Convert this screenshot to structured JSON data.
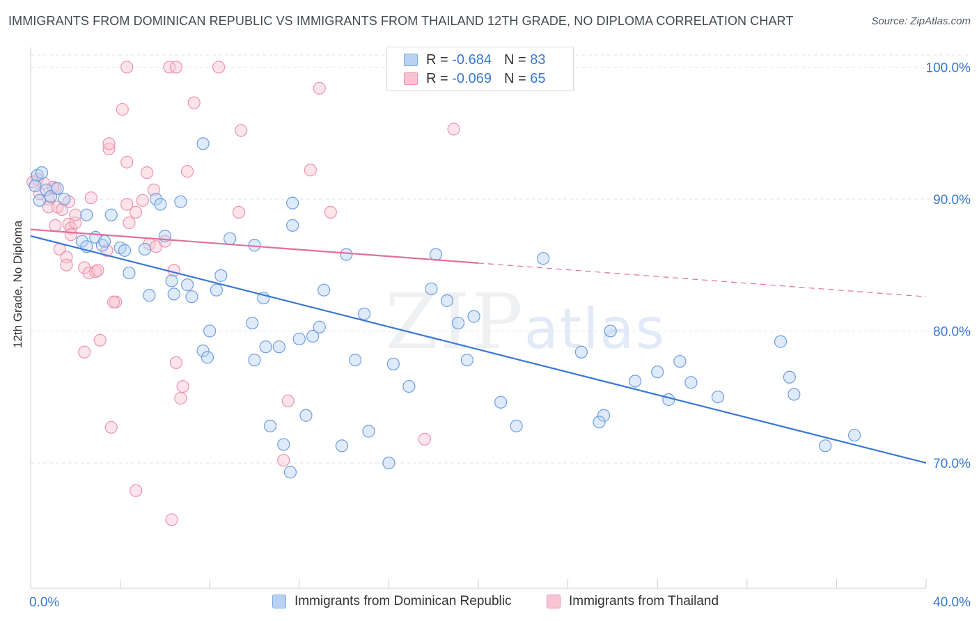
{
  "title": "IMMIGRANTS FROM DOMINICAN REPUBLIC VS IMMIGRANTS FROM THAILAND 12TH GRADE, NO DIPLOMA CORRELATION CHART",
  "source": "Source: ZipAtlas.com",
  "watermark": {
    "zip": "ZIP",
    "atlas": "atlas"
  },
  "stats": {
    "blue": {
      "r_label": "R =",
      "r": "-0.684",
      "n_label": "N =",
      "n": "83"
    },
    "pink": {
      "r_label": "R =",
      "r": "-0.069",
      "n_label": "N =",
      "n": "65"
    }
  },
  "legend": {
    "blue": "Immigrants from Dominican Republic",
    "pink": "Immigrants from Thailand"
  },
  "colors": {
    "blue": "#3a78d4",
    "blue_fill": "#b9d2f3",
    "pink": "#e0709a",
    "pink_fill": "#f8c4d3",
    "tick_label": "#3a78d4"
  },
  "chart_data": {
    "type": "scatter",
    "ylabel": "12th Grade, No Diploma",
    "xlim": [
      0,
      40
    ],
    "ylim": [
      60.5,
      101.5
    ],
    "x_tick_labels": [
      {
        "value": 0,
        "label": "0.0%"
      },
      {
        "value": 40,
        "label": "40.0%"
      }
    ],
    "y_ticks": [
      {
        "value": 70,
        "label": "70.0%"
      },
      {
        "value": 80,
        "label": "80.0%"
      },
      {
        "value": 90,
        "label": "90.0%"
      },
      {
        "value": 100,
        "label": "100.0%"
      }
    ],
    "grid": true,
    "legend_position": "bottom",
    "series": [
      {
        "name": "Immigrants from Dominican Republic",
        "color": "#3a78d4",
        "trend": {
          "x": [
            0,
            40
          ],
          "y": [
            87.2,
            70.0
          ],
          "dashed_from": null
        },
        "points": [
          [
            0.3,
            91.8
          ],
          [
            0.7,
            90.7
          ],
          [
            0.9,
            90.2
          ],
          [
            1.5,
            90.0
          ],
          [
            0.4,
            89.9
          ],
          [
            2.5,
            88.8
          ],
          [
            3.6,
            88.8
          ],
          [
            5.6,
            90.0
          ],
          [
            5.8,
            89.6
          ],
          [
            6.7,
            89.8
          ],
          [
            7.7,
            94.2
          ],
          [
            2.3,
            86.8
          ],
          [
            2.9,
            87.1
          ],
          [
            2.5,
            86.4
          ],
          [
            3.2,
            86.5
          ],
          [
            3.3,
            86.8
          ],
          [
            4.0,
            86.3
          ],
          [
            4.2,
            86.1
          ],
          [
            5.1,
            86.2
          ],
          [
            6.0,
            87.2
          ],
          [
            4.4,
            84.4
          ],
          [
            6.3,
            83.8
          ],
          [
            7.0,
            83.5
          ],
          [
            5.3,
            82.7
          ],
          [
            6.4,
            82.8
          ],
          [
            7.2,
            82.6
          ],
          [
            8.5,
            84.2
          ],
          [
            8.9,
            87.0
          ],
          [
            10.0,
            86.5
          ],
          [
            11.7,
            88.0
          ],
          [
            11.7,
            89.7
          ],
          [
            14.1,
            85.8
          ],
          [
            8.3,
            83.1
          ],
          [
            10.4,
            82.5
          ],
          [
            13.1,
            83.1
          ],
          [
            11.1,
            78.8
          ],
          [
            9.9,
            80.6
          ],
          [
            8.0,
            80.0
          ],
          [
            7.7,
            78.5
          ],
          [
            7.9,
            78.0
          ],
          [
            10.0,
            77.8
          ],
          [
            10.5,
            78.8
          ],
          [
            12.0,
            79.4
          ],
          [
            12.6,
            79.6
          ],
          [
            12.9,
            80.3
          ],
          [
            14.9,
            81.3
          ],
          [
            18.1,
            85.8
          ],
          [
            17.9,
            83.2
          ],
          [
            18.6,
            82.3
          ],
          [
            14.5,
            77.8
          ],
          [
            19.1,
            80.6
          ],
          [
            19.8,
            81.1
          ],
          [
            19.5,
            77.8
          ],
          [
            16.2,
            77.5
          ],
          [
            16.9,
            75.8
          ],
          [
            12.3,
            73.6
          ],
          [
            10.7,
            72.8
          ],
          [
            11.3,
            71.4
          ],
          [
            11.6,
            69.3
          ],
          [
            13.9,
            71.3
          ],
          [
            15.1,
            72.4
          ],
          [
            16.0,
            70.0
          ],
          [
            21.0,
            74.6
          ],
          [
            21.7,
            72.8
          ],
          [
            22.9,
            85.5
          ],
          [
            24.6,
            78.4
          ],
          [
            25.9,
            80.0
          ],
          [
            25.6,
            73.6
          ],
          [
            25.4,
            73.1
          ],
          [
            27.0,
            76.2
          ],
          [
            28.0,
            76.9
          ],
          [
            28.5,
            74.8
          ],
          [
            29.0,
            77.7
          ],
          [
            29.5,
            76.1
          ],
          [
            30.7,
            75.0
          ],
          [
            33.5,
            79.2
          ],
          [
            33.9,
            76.5
          ],
          [
            34.1,
            75.2
          ],
          [
            35.5,
            71.3
          ],
          [
            36.8,
            72.1
          ],
          [
            0.5,
            92.0
          ],
          [
            0.2,
            91.0
          ],
          [
            1.2,
            90.8
          ]
        ]
      },
      {
        "name": "Immigrants from Thailand",
        "color": "#e0709a",
        "trend": {
          "x": [
            0,
            40
          ],
          "y": [
            87.7,
            82.6
          ],
          "dashed_from": 20
        },
        "points": [
          [
            0.3,
            91.5
          ],
          [
            0.6,
            91.2
          ],
          [
            0.4,
            90.4
          ],
          [
            0.8,
            90.0
          ],
          [
            1.1,
            90.8
          ],
          [
            0.8,
            89.4
          ],
          [
            1.2,
            89.4
          ],
          [
            1.4,
            89.2
          ],
          [
            1.7,
            89.8
          ],
          [
            1.1,
            88.0
          ],
          [
            1.7,
            88.1
          ],
          [
            1.8,
            87.8
          ],
          [
            2.0,
            88.2
          ],
          [
            2.0,
            88.8
          ],
          [
            1.8,
            87.3
          ],
          [
            2.7,
            90.1
          ],
          [
            3.5,
            93.8
          ],
          [
            3.5,
            94.2
          ],
          [
            4.1,
            96.8
          ],
          [
            4.3,
            92.8
          ],
          [
            4.3,
            89.6
          ],
          [
            4.4,
            88.2
          ],
          [
            4.7,
            89.0
          ],
          [
            5.2,
            92.0
          ],
          [
            5.0,
            89.9
          ],
          [
            5.5,
            90.7
          ],
          [
            5.3,
            86.6
          ],
          [
            5.6,
            86.4
          ],
          [
            6.0,
            86.8
          ],
          [
            6.4,
            84.6
          ],
          [
            4.3,
            100.0
          ],
          [
            6.2,
            100.0
          ],
          [
            6.5,
            100.0
          ],
          [
            8.4,
            100.0
          ],
          [
            7.3,
            97.3
          ],
          [
            9.4,
            95.2
          ],
          [
            7.0,
            92.1
          ],
          [
            9.3,
            89.0
          ],
          [
            12.5,
            92.2
          ],
          [
            13.4,
            89.0
          ],
          [
            12.9,
            98.4
          ],
          [
            18.9,
            95.3
          ],
          [
            1.3,
            86.2
          ],
          [
            1.6,
            85.6
          ],
          [
            1.6,
            85.0
          ],
          [
            2.4,
            84.8
          ],
          [
            2.6,
            84.4
          ],
          [
            2.9,
            84.5
          ],
          [
            3.0,
            84.6
          ],
          [
            3.4,
            86.1
          ],
          [
            3.8,
            82.2
          ],
          [
            3.7,
            82.2
          ],
          [
            3.1,
            79.3
          ],
          [
            2.4,
            78.4
          ],
          [
            3.6,
            72.7
          ],
          [
            6.5,
            77.6
          ],
          [
            6.8,
            75.8
          ],
          [
            6.7,
            74.9
          ],
          [
            11.5,
            74.7
          ],
          [
            11.3,
            70.2
          ],
          [
            17.6,
            71.8
          ],
          [
            4.7,
            67.9
          ],
          [
            6.3,
            65.7
          ],
          [
            0.1,
            91.3
          ],
          [
            1.0,
            90.9
          ]
        ]
      }
    ]
  }
}
